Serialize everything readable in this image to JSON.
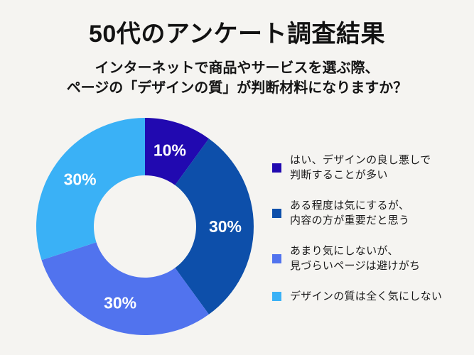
{
  "page": {
    "title": "50代のアンケート調査結果",
    "subtitle_lines": [
      "インターネットで商品やサービスを選ぶ際、",
      "ページの「デザインの質」が判断材料になりますか？"
    ],
    "background_color": "#F5F4F1"
  },
  "chart_data": {
    "type": "pie",
    "variant": "donut",
    "title": "50代のアンケート調査結果",
    "question": "インターネットで商品やサービスを選ぶ際、ページの「デザインの質」が判断材料になりますか？",
    "unit": "%",
    "start_angle_deg": 0,
    "direction": "clockwise",
    "categories": [
      "はい、デザインの良し悪しで判断することが多い",
      "ある程度は気にするが、内容の方が重要だと思う",
      "あまり気にしないが、見づらいページは避けがち",
      "デザインの質は全く気にしない"
    ],
    "values": [
      10,
      30,
      30,
      30
    ],
    "slice_labels": [
      "10%",
      "30%",
      "30%",
      "30%"
    ],
    "colors": [
      "#2109B0",
      "#0D4FAA",
      "#5173EE",
      "#3AB1F6"
    ],
    "slice_label_color": "#FFFFFF",
    "legend_position": "right",
    "legend": [
      {
        "lines": [
          "はい、デザインの良し悪しで",
          "判断することが多い"
        ],
        "color": "#2109B0"
      },
      {
        "lines": [
          "ある程度は気にするが、",
          "内容の方が重要だと思う"
        ],
        "color": "#0D4FAA"
      },
      {
        "lines": [
          "あまり気にしないが、",
          "見づらいページは避けがち"
        ],
        "color": "#5173EE"
      },
      {
        "lines": [
          "デザインの質は全く気にしない"
        ],
        "color": "#3AB1F6"
      }
    ]
  }
}
